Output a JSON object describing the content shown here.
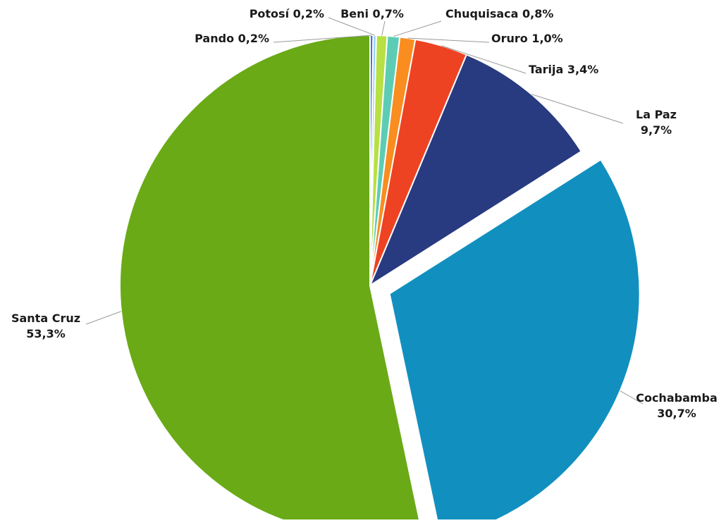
{
  "chart_data": {
    "type": "pie",
    "title": "",
    "start_angle_deg": 0,
    "direction": "clockwise",
    "slices": [
      {
        "label": "Pando",
        "value": 0.2,
        "value_text": "0,2%",
        "color": "#4a6fd8"
      },
      {
        "label": "Potosí",
        "value": 0.2,
        "value_text": "0,2%",
        "color": "#8fd0ef"
      },
      {
        "label": "Beni",
        "value": 0.7,
        "value_text": "0,7%",
        "color": "#b7e043"
      },
      {
        "label": "Chuquisaca",
        "value": 0.8,
        "value_text": "0,8%",
        "color": "#5ccdb4"
      },
      {
        "label": "Oruro",
        "value": 1.0,
        "value_text": "1,0%",
        "color": "#f98d1f"
      },
      {
        "label": "Tarija",
        "value": 3.4,
        "value_text": "3,4%",
        "color": "#ee4323"
      },
      {
        "label": "La Paz",
        "value": 9.7,
        "value_text": "9,7%",
        "color": "#283a80"
      },
      {
        "label": "Cochabamba",
        "value": 30.7,
        "value_text": "30,7%",
        "color": "#1190bf",
        "exploded": true
      },
      {
        "label": "Santa Cruz",
        "value": 53.3,
        "value_text": "53,3%",
        "color": "#6aaa17"
      }
    ]
  }
}
